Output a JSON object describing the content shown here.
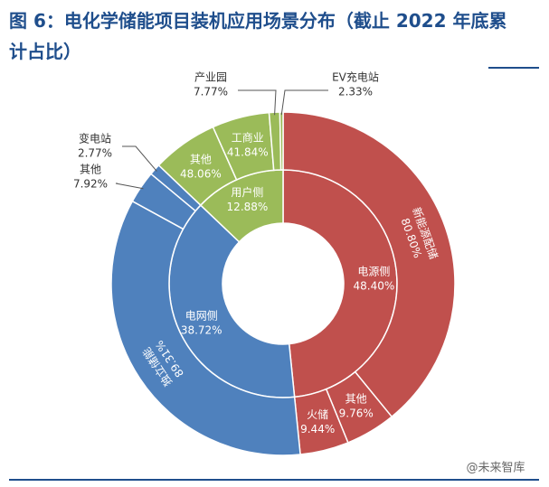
{
  "chart_data": {
    "type": "sunburst",
    "title": "图 6：电化学储能项目装机应用场景分布（截止 2022 年底累计占比）",
    "categories": [
      "电源侧",
      "电网侧",
      "用户侧"
    ],
    "values": [
      48.4,
      38.72,
      12.88
    ],
    "value_labels": [
      "48.40%",
      "38.72%",
      "12.88%"
    ],
    "colors": [
      "#c0504d",
      "#4f81bd",
      "#9bbb59"
    ],
    "children": [
      {
        "categories": [
          "新能源配储",
          "其他",
          "火储"
        ],
        "values": [
          80.8,
          9.76,
          9.44
        ],
        "value_labels": [
          "80.80%",
          "9.76%",
          "9.44%"
        ]
      },
      {
        "categories": [
          "独立储能",
          "其他",
          "变电站"
        ],
        "values": [
          89.31,
          7.92,
          2.77
        ],
        "value_labels": [
          "89.31%",
          "7.92%",
          "2.77%"
        ]
      },
      {
        "categories": [
          "其他",
          "工商业",
          "产业园",
          "EV充电站"
        ],
        "values": [
          48.06,
          41.84,
          7.77,
          2.33
        ],
        "value_labels": [
          "48.06%",
          "41.84%",
          "7.77%",
          "2.33%"
        ]
      }
    ]
  },
  "watermark": "@未来智库"
}
